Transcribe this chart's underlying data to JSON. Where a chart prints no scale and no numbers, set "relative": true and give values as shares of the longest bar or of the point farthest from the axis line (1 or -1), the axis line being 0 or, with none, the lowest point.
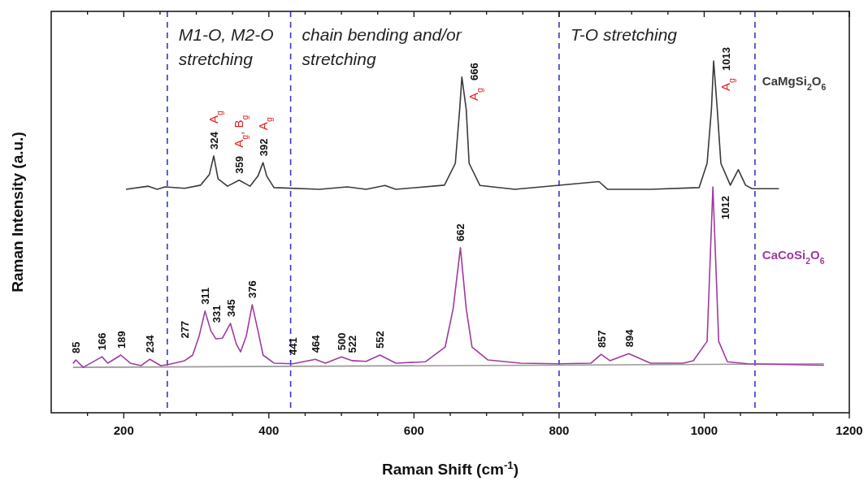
{
  "chart_data": {
    "type": "line",
    "relative": true,
    "xlabel": "Raman Shift (cm$^{-1}$)",
    "ylabel": "Raman Intensity (a.u.)",
    "xlim": [
      100,
      1200
    ],
    "xticks": [
      {
        "value": 150,
        "label": null
      },
      200,
      {
        "value": 250,
        "label": null
      },
      {
        "value": 300,
        "label": null
      },
      {
        "value": 350,
        "label": null
      },
      400,
      {
        "value": 450,
        "label": null
      },
      {
        "value": 500,
        "label": null
      },
      {
        "value": 550,
        "label": null
      },
      600,
      {
        "value": 650,
        "label": null
      },
      {
        "value": 700,
        "label": null
      },
      {
        "value": 750,
        "label": null
      },
      800,
      {
        "value": 850,
        "label": null
      },
      {
        "value": 900,
        "label": null
      },
      {
        "value": 950,
        "label": null
      },
      1000,
      {
        "value": 1050,
        "label": null
      },
      {
        "value": 1100,
        "label": null
      },
      {
        "value": 1150,
        "label": null
      },
      1200
    ],
    "series": [
      {
        "name": "CaMgSi$_{2}$O$_{6}$",
        "color": "#3a3a3a",
        "x": [
          203,
          234,
          246,
          257,
          284,
          306,
          318,
          324,
          330,
          343,
          359,
          374,
          385,
          392,
          397,
          407,
          470,
          508,
          534,
          560,
          575,
          642,
          657,
          663,
          666,
          672,
          676,
          691,
          739,
          855,
          867,
          926,
          993,
          1004,
          1010,
          1013,
          1018,
          1023,
          1036,
          1047,
          1057,
          1066,
          1103
        ],
        "values": [
          0.635,
          0.644,
          0.635,
          0.642,
          0.638,
          0.647,
          0.677,
          0.73,
          0.665,
          0.644,
          0.661,
          0.644,
          0.673,
          0.711,
          0.673,
          0.64,
          0.635,
          0.642,
          0.635,
          0.646,
          0.635,
          0.647,
          0.709,
          0.863,
          0.954,
          0.863,
          0.709,
          0.646,
          0.635,
          0.657,
          0.635,
          0.635,
          0.64,
          0.709,
          0.863,
          1.0,
          0.863,
          0.709,
          0.647,
          0.691,
          0.647,
          0.637,
          0.637
        ]
      },
      {
        "name": null,
        "color": "#9a9a9a",
        "x": [
          130,
          1165
        ],
        "values": [
          0.129,
          0.139
        ]
      },
      {
        "name": "CaCoSi$_{2}$O$_{6}$",
        "color": "#a03aa0",
        "x": [
          130,
          134,
          144,
          170,
          178,
          196,
          209,
          224,
          236,
          251,
          261,
          284,
          295,
          304,
          312,
          320,
          327,
          336,
          347,
          355,
          361,
          369,
          377,
          385,
          392,
          407,
          433,
          464,
          478,
          500,
          515,
          534,
          553,
          575,
          616,
          643,
          654,
          664,
          672,
          680,
          702,
          747,
          799,
          844,
          858,
          870,
          896,
          926,
          971,
          985,
          1004,
          1012,
          1020,
          1032,
          1060,
          1165
        ],
        "values": [
          0.14,
          0.15,
          0.129,
          0.159,
          0.141,
          0.164,
          0.141,
          0.134,
          0.152,
          0.134,
          0.137,
          0.148,
          0.164,
          0.219,
          0.289,
          0.233,
          0.21,
          0.212,
          0.254,
          0.196,
          0.173,
          0.219,
          0.307,
          0.233,
          0.164,
          0.141,
          0.139,
          0.152,
          0.141,
          0.159,
          0.148,
          0.146,
          0.164,
          0.141,
          0.145,
          0.187,
          0.296,
          0.469,
          0.296,
          0.187,
          0.15,
          0.141,
          0.139,
          0.141,
          0.166,
          0.148,
          0.168,
          0.141,
          0.141,
          0.148,
          0.203,
          0.642,
          0.203,
          0.145,
          0.139,
          0.135
        ]
      }
    ],
    "ref_lines": [
      {
        "axis": "x",
        "value": 260,
        "color": "#3636c8",
        "line_style": "dashed"
      },
      {
        "axis": "x",
        "value": 430,
        "color": "#3636c8",
        "line_style": "dashed"
      },
      {
        "axis": "x",
        "value": 800,
        "color": "#3636c8",
        "line_style": "dashed"
      },
      {
        "axis": "x",
        "value": 1070,
        "color": "#3636c8",
        "line_style": "dashed"
      }
    ],
    "annotations": [
      "M1-O, M2-O stretching",
      "chain bending and/or stretching",
      "T-O stretching",
      {
        "text": "324",
        "x": 324,
        "y": 0.73
      },
      {
        "text": "359",
        "x": 359,
        "y": 0.661
      },
      {
        "text": "392",
        "x": 392,
        "y": 0.711
      },
      {
        "text": "666",
        "x": 666,
        "y": 0.954
      },
      {
        "text": "1013",
        "x": 1013,
        "y": 1.0
      },
      {
        "text": "A$_{g}$",
        "x": 324,
        "y": 0.73
      },
      {
        "text": "A$_{g}$, B$_{g}$",
        "x": 359,
        "y": 0.661
      },
      {
        "text": "A$_{g}$",
        "x": 392,
        "y": 0.711
      },
      {
        "text": "A$_{g}$",
        "x": 666,
        "y": 0.954
      },
      {
        "text": "A$_{g}$",
        "x": 1013,
        "y": 1.0
      },
      {
        "text": "85",
        "x": 134,
        "y": 0.15
      },
      {
        "text": "166",
        "x": 170,
        "y": 0.159
      },
      {
        "text": "189",
        "x": 196,
        "y": 0.164
      },
      {
        "text": "234",
        "x": 236,
        "y": 0.152
      },
      {
        "text": "277",
        "x": 284,
        "y": 0.148
      },
      {
        "text": "311",
        "x": 312,
        "y": 0.289
      },
      {
        "text": "331",
        "x": 327,
        "y": 0.21
      },
      {
        "text": "345",
        "x": 347,
        "y": 0.254
      },
      {
        "text": "376",
        "x": 377,
        "y": 0.307
      },
      {
        "text": "441",
        "x": 433,
        "y": 0.139
      },
      {
        "text": "464",
        "x": 464,
        "y": 0.152
      },
      {
        "text": "500",
        "x": 500,
        "y": 0.159
      },
      {
        "text": "522",
        "x": 515,
        "y": 0.148
      },
      {
        "text": "552",
        "x": 553,
        "y": 0.164
      },
      {
        "text": "662",
        "x": 664,
        "y": 0.469
      },
      {
        "text": "857",
        "x": 858,
        "y": 0.166
      },
      {
        "text": "894",
        "x": 896,
        "y": 0.168
      },
      {
        "text": "1012",
        "x": 1012,
        "y": 0.642
      }
    ]
  }
}
